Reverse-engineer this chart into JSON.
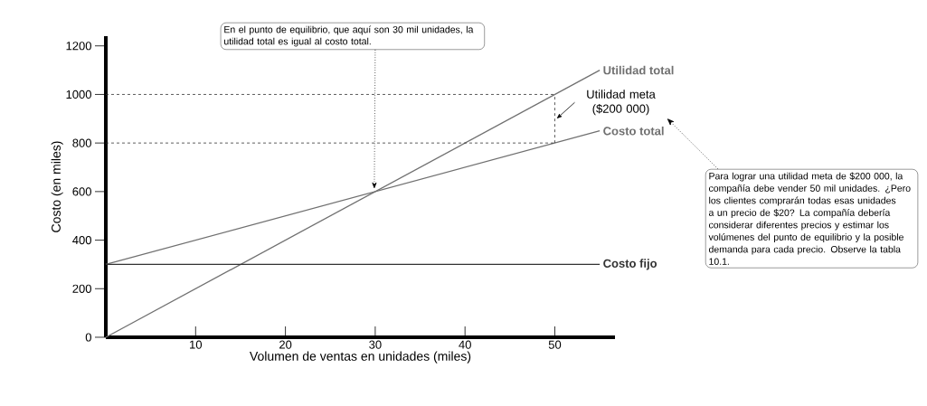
{
  "chart_data": {
    "type": "line",
    "xlabel": "Volumen de ventas en unidades (miles)",
    "ylabel": "Costo (en miles)",
    "xlim": [
      0,
      56.7
    ],
    "ylim": [
      0,
      1240
    ],
    "xticks": [
      10,
      20,
      30,
      40,
      50
    ],
    "yticks": [
      0,
      200,
      400,
      600,
      800,
      1000,
      1200
    ],
    "grid": false,
    "legend": false,
    "marker": "none",
    "series": [
      {
        "name": "Utilidad total",
        "color": "#707070",
        "x": [
          0,
          55
        ],
        "values": [
          0,
          1100
        ]
      },
      {
        "name": "Costo total",
        "color": "#707070",
        "x": [
          0,
          55
        ],
        "values": [
          300,
          850
        ]
      },
      {
        "name": "Costo fijo",
        "color": "#333333",
        "x": [
          0,
          55
        ],
        "values": [
          300,
          300
        ]
      },
      {
        "color": "#333333",
        "x": [
          0,
          50
        ],
        "values": [
          1000,
          1000
        ],
        "line_style": "dashed"
      },
      {
        "color": "#333333",
        "x": [
          0,
          50
        ],
        "values": [
          800,
          800
        ],
        "line_style": "dashed"
      },
      {
        "color": "#333333",
        "x": [
          50,
          50
        ],
        "values": [
          800,
          1000
        ],
        "line_style": "dashed"
      }
    ],
    "annotations": [
      {
        "text": "En el punto de equilibrio, que aquí son 30 mil unidades, la utilidad total es igual al costo total.",
        "x": 30,
        "y": 600
      },
      {
        "text": "Utilidad meta ($200 000)",
        "x": 50,
        "y": 900
      },
      "Para lograr una utilidad meta de $200 000, la compañía debe vender 50 mil unidades. ¿Pero los clientes comprarán todas esas unidades a un precio de $20? La compañía debería considerar diferentes precios y estimar los volúmenes del punto de equilibrio y la posible demanda para cada precio. Observe la tabla 10.1."
    ]
  }
}
